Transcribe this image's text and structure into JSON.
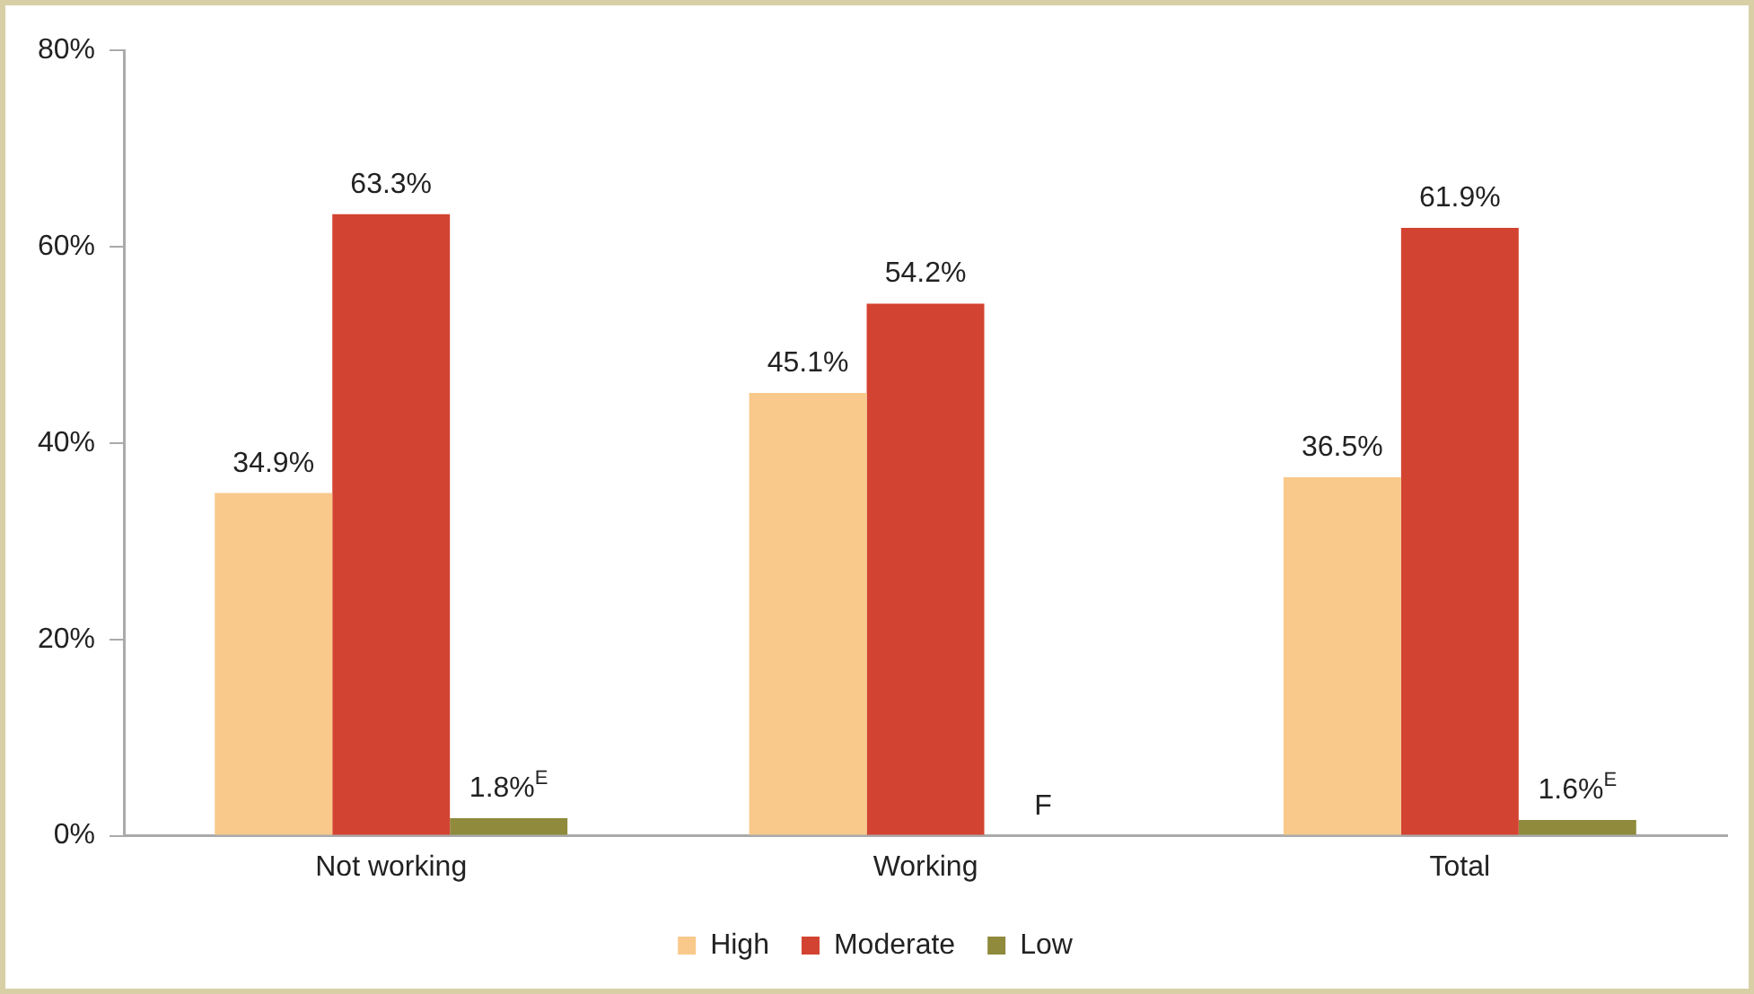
{
  "chart_data": {
    "type": "bar",
    "categories": [
      "Not working",
      "Working",
      "Total"
    ],
    "series": [
      {
        "name": "High",
        "color": "#f9c98b",
        "values": [
          34.9,
          45.1,
          36.5
        ],
        "value_labels": [
          "34.9%",
          "45.1%",
          "36.5%"
        ]
      },
      {
        "name": "Moderate",
        "color": "#d34331",
        "values": [
          63.3,
          54.2,
          61.9
        ],
        "value_labels": [
          "63.3%",
          "54.2%",
          "61.9%"
        ]
      },
      {
        "name": "Low",
        "color": "#8f8a3c",
        "values": [
          1.8,
          null,
          1.6
        ],
        "value_labels": [
          "1.8%$^{E}$",
          "F",
          "1.6%$^{E}$"
        ]
      }
    ],
    "ylim": [
      0,
      80
    ],
    "yticks": [
      {
        "value": 0,
        "label": "0%"
      },
      {
        "value": 20,
        "label": "20%"
      },
      {
        "value": 40,
        "label": "40%"
      },
      {
        "value": 60,
        "label": "60%"
      },
      {
        "value": 80,
        "label": "80%"
      }
    ],
    "grid": false,
    "legend": "bottom"
  }
}
